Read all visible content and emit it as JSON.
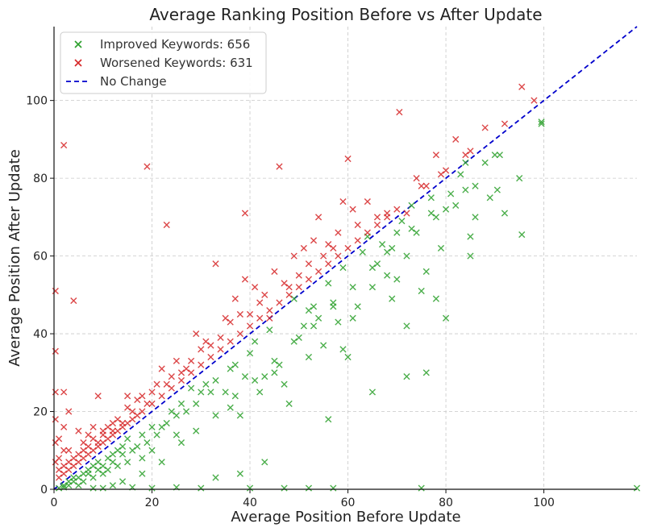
{
  "chart_data": {
    "type": "scatter",
    "title": "Average Ranking Position Before vs After Update",
    "xlabel": "Average Position Before Update",
    "ylabel": "Average Position After Update",
    "xlim": [
      0,
      119
    ],
    "ylim": [
      0,
      119
    ],
    "xticks": [
      0,
      20,
      40,
      60,
      80,
      100
    ],
    "yticks": [
      0,
      20,
      40,
      60,
      80,
      100
    ],
    "grid": true,
    "legend_position": "top-left",
    "series": [
      {
        "name": "Improved Keywords: 656",
        "color": "#2ca02c",
        "marker": "x",
        "points": [
          [
            99.5,
            94
          ],
          [
            95,
            80
          ],
          [
            95.5,
            65.5
          ],
          [
            91,
            86
          ],
          [
            90.5,
            77
          ],
          [
            92,
            71
          ],
          [
            89,
            75
          ],
          [
            86,
            70
          ],
          [
            85,
            65
          ],
          [
            85,
            60
          ],
          [
            84,
            84
          ],
          [
            84,
            77
          ],
          [
            82,
            73
          ],
          [
            80,
            72
          ],
          [
            80,
            44
          ],
          [
            79,
            62
          ],
          [
            78,
            49
          ],
          [
            78,
            70
          ],
          [
            77,
            75
          ],
          [
            76,
            30
          ],
          [
            76,
            56
          ],
          [
            75,
            51
          ],
          [
            74,
            66
          ],
          [
            73,
            73
          ],
          [
            72,
            29
          ],
          [
            72,
            42
          ],
          [
            72,
            60
          ],
          [
            71,
            69
          ],
          [
            70,
            54
          ],
          [
            70,
            66
          ],
          [
            69,
            49
          ],
          [
            68,
            55
          ],
          [
            68,
            61
          ],
          [
            67,
            63
          ],
          [
            66,
            58
          ],
          [
            65,
            52
          ],
          [
            65,
            25
          ],
          [
            64,
            65
          ],
          [
            63,
            61
          ],
          [
            62,
            47
          ],
          [
            61,
            44
          ],
          [
            60,
            34
          ],
          [
            59,
            36
          ],
          [
            59,
            57
          ],
          [
            58,
            43
          ],
          [
            57,
            47
          ],
          [
            56,
            18
          ],
          [
            56,
            53
          ],
          [
            55,
            37
          ],
          [
            54,
            44
          ],
          [
            53,
            47
          ],
          [
            52,
            34
          ],
          [
            52,
            46
          ],
          [
            51,
            42
          ],
          [
            50,
            39
          ],
          [
            49,
            49
          ],
          [
            48,
            22
          ],
          [
            47,
            27
          ],
          [
            46,
            32
          ],
          [
            45,
            30
          ],
          [
            44,
            41
          ],
          [
            43,
            7
          ],
          [
            43,
            29
          ],
          [
            42,
            25
          ],
          [
            41,
            38
          ],
          [
            40,
            35
          ],
          [
            39,
            29
          ],
          [
            38,
            19
          ],
          [
            38,
            4
          ],
          [
            37,
            32
          ],
          [
            36,
            21
          ],
          [
            36,
            31
          ],
          [
            35,
            25
          ],
          [
            33,
            3
          ],
          [
            33,
            28
          ],
          [
            32,
            25
          ],
          [
            31,
            27
          ],
          [
            30,
            25
          ],
          [
            29,
            22
          ],
          [
            28,
            26
          ],
          [
            27,
            20
          ],
          [
            26,
            22
          ],
          [
            25,
            19
          ],
          [
            25,
            14
          ],
          [
            24,
            20
          ],
          [
            23,
            17
          ],
          [
            22,
            16
          ],
          [
            21,
            14
          ],
          [
            20,
            16
          ],
          [
            20,
            10
          ],
          [
            19,
            12
          ],
          [
            18,
            14
          ],
          [
            18,
            8
          ],
          [
            17,
            11
          ],
          [
            16,
            10
          ],
          [
            15,
            13
          ],
          [
            15,
            7
          ],
          [
            14,
            9
          ],
          [
            14,
            11
          ],
          [
            13,
            6
          ],
          [
            13,
            10
          ],
          [
            12,
            7
          ],
          [
            12,
            9
          ],
          [
            11,
            5
          ],
          [
            11,
            8
          ],
          [
            10,
            6
          ],
          [
            10,
            4
          ],
          [
            9,
            5
          ],
          [
            9,
            7
          ],
          [
            8,
            3
          ],
          [
            8,
            6
          ],
          [
            7,
            4
          ],
          [
            7,
            5
          ],
          [
            6,
            2
          ],
          [
            6,
            4
          ],
          [
            5,
            3
          ],
          [
            5,
            1
          ],
          [
            4,
            2
          ],
          [
            4,
            3
          ],
          [
            3,
            1
          ],
          [
            3,
            2
          ],
          [
            2,
            0.5
          ],
          [
            2,
            1
          ],
          [
            1,
            0.3
          ],
          [
            10,
            0.3
          ],
          [
            20,
            0.3
          ],
          [
            30,
            0.3
          ],
          [
            40,
            0.3
          ],
          [
            47,
            0.3
          ],
          [
            52,
            0.3
          ],
          [
            75,
            0.3
          ],
          [
            119,
            0.3
          ],
          [
            57,
            0.3
          ],
          [
            25,
            0.5
          ],
          [
            12,
            1
          ],
          [
            16,
            0.5
          ],
          [
            8,
            0.3
          ],
          [
            14,
            2
          ],
          [
            18,
            4
          ],
          [
            22,
            7
          ],
          [
            26,
            12
          ],
          [
            29,
            15
          ],
          [
            33,
            19
          ],
          [
            37,
            24
          ],
          [
            41,
            28
          ],
          [
            45,
            33
          ],
          [
            49,
            38
          ],
          [
            53,
            42
          ],
          [
            57,
            48
          ],
          [
            61,
            52
          ],
          [
            65,
            57
          ],
          [
            69,
            62
          ],
          [
            73,
            67
          ],
          [
            77,
            71
          ],
          [
            81,
            76
          ],
          [
            83,
            81
          ],
          [
            86,
            78
          ],
          [
            88,
            84
          ],
          [
            90,
            86
          ],
          [
            99.5,
            94.5
          ]
        ]
      },
      {
        "name": "Worsened Keywords: 631",
        "color": "#d62728",
        "marker": "x",
        "points": [
          [
            95.5,
            103.5
          ],
          [
            98,
            100
          ],
          [
            92,
            94
          ],
          [
            88,
            93
          ],
          [
            84,
            86
          ],
          [
            82,
            90
          ],
          [
            80,
            82
          ],
          [
            78,
            86
          ],
          [
            76,
            78
          ],
          [
            74,
            80
          ],
          [
            72,
            71
          ],
          [
            70.5,
            97
          ],
          [
            70,
            72
          ],
          [
            68,
            70
          ],
          [
            66,
            70
          ],
          [
            64,
            74
          ],
          [
            62,
            68
          ],
          [
            61,
            72
          ],
          [
            60,
            85
          ],
          [
            59,
            74
          ],
          [
            58,
            66
          ],
          [
            57,
            62
          ],
          [
            56,
            63
          ],
          [
            55,
            60
          ],
          [
            54,
            70
          ],
          [
            53,
            64
          ],
          [
            52,
            58
          ],
          [
            51,
            62
          ],
          [
            50,
            55
          ],
          [
            49,
            60
          ],
          [
            48,
            52
          ],
          [
            47,
            53
          ],
          [
            46,
            83
          ],
          [
            45,
            56
          ],
          [
            44,
            44
          ],
          [
            43,
            50
          ],
          [
            42,
            48
          ],
          [
            41,
            52
          ],
          [
            40,
            45
          ],
          [
            39,
            71
          ],
          [
            39,
            54
          ],
          [
            38,
            45
          ],
          [
            37,
            49
          ],
          [
            36,
            43
          ],
          [
            35,
            44
          ],
          [
            34,
            39
          ],
          [
            33,
            58
          ],
          [
            32,
            37
          ],
          [
            31,
            38
          ],
          [
            30,
            36
          ],
          [
            29,
            40
          ],
          [
            28,
            33
          ],
          [
            27,
            31
          ],
          [
            26,
            30
          ],
          [
            25,
            33
          ],
          [
            24,
            29
          ],
          [
            23,
            68
          ],
          [
            23,
            27
          ],
          [
            22,
            31
          ],
          [
            21,
            27
          ],
          [
            20,
            25
          ],
          [
            19,
            83
          ],
          [
            19,
            22
          ],
          [
            18,
            24
          ],
          [
            17,
            23
          ],
          [
            16,
            20
          ],
          [
            15,
            21
          ],
          [
            14,
            17
          ],
          [
            13,
            18
          ],
          [
            12,
            15
          ],
          [
            11,
            16
          ],
          [
            10,
            14
          ],
          [
            9,
            24
          ],
          [
            9,
            12
          ],
          [
            8,
            13
          ],
          [
            7,
            11
          ],
          [
            6,
            10
          ],
          [
            5,
            9
          ],
          [
            4,
            48.5
          ],
          [
            4,
            8
          ],
          [
            3,
            7
          ],
          [
            2,
            88.5
          ],
          [
            2,
            25
          ],
          [
            2,
            6
          ],
          [
            1,
            5
          ],
          [
            0.3,
            51
          ],
          [
            0.3,
            35.5
          ],
          [
            0.3,
            25
          ],
          [
            0.3,
            18
          ],
          [
            0.3,
            12
          ],
          [
            0.3,
            7
          ],
          [
            1,
            3
          ],
          [
            2,
            4
          ],
          [
            3,
            5
          ],
          [
            4,
            6
          ],
          [
            5,
            7
          ],
          [
            6,
            8
          ],
          [
            7,
            9
          ],
          [
            8,
            10
          ],
          [
            9,
            11
          ],
          [
            10,
            12
          ],
          [
            11,
            13
          ],
          [
            12,
            14
          ],
          [
            13,
            15
          ],
          [
            14,
            16
          ],
          [
            15,
            17
          ],
          [
            16,
            18
          ],
          [
            17,
            19
          ],
          [
            18,
            20
          ],
          [
            20,
            22
          ],
          [
            22,
            24
          ],
          [
            24,
            26
          ],
          [
            26,
            28
          ],
          [
            28,
            30
          ],
          [
            30,
            32
          ],
          [
            32,
            34
          ],
          [
            34,
            36
          ],
          [
            36,
            38
          ],
          [
            38,
            40
          ],
          [
            40,
            42
          ],
          [
            42,
            44
          ],
          [
            44,
            46
          ],
          [
            46,
            48
          ],
          [
            48,
            50
          ],
          [
            50,
            52
          ],
          [
            52,
            54
          ],
          [
            54,
            56
          ],
          [
            56,
            58
          ],
          [
            58,
            60
          ],
          [
            60,
            62
          ],
          [
            62,
            64
          ],
          [
            64,
            66
          ],
          [
            66,
            68
          ],
          [
            68,
            71
          ],
          [
            75,
            78
          ],
          [
            79,
            81
          ],
          [
            85,
            87
          ],
          [
            1,
            13
          ],
          [
            2,
            16
          ],
          [
            3,
            10
          ],
          [
            5,
            15
          ],
          [
            6,
            12
          ],
          [
            3,
            20
          ],
          [
            2,
            10
          ],
          [
            1,
            8
          ],
          [
            7,
            14
          ],
          [
            8,
            16
          ],
          [
            10,
            15
          ],
          [
            12,
            17
          ],
          [
            15,
            24
          ]
        ]
      },
      {
        "name": "No Change",
        "color": "#0000cc",
        "style": "dashed",
        "points": [
          [
            0,
            0
          ],
          [
            119,
            119
          ]
        ]
      }
    ]
  }
}
